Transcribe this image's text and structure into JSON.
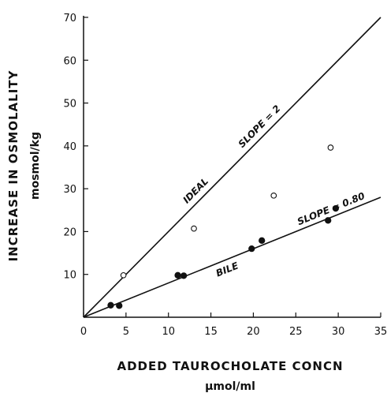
{
  "chart_data": {
    "type": "scatter",
    "xlabel": "ADDED TAUROCHOLATE CONCN",
    "xunit": "μmol/ml",
    "ylabel": "INCREASE IN OSMOLALITY",
    "yunit": "mosmol/kg",
    "xlim": [
      0,
      35
    ],
    "ylim": [
      0,
      70
    ],
    "xticks": [
      0,
      5,
      10,
      15,
      20,
      25,
      30,
      35
    ],
    "yticks": [
      10,
      20,
      30,
      40,
      50,
      60,
      70
    ],
    "grid": false,
    "series": [
      {
        "marker": "open-circle",
        "x": [
          4.7,
          13.0,
          22.4,
          29.1
        ],
        "y": [
          9.8,
          20.7,
          28.4,
          39.6
        ]
      },
      {
        "marker": "filled-circle",
        "x": [
          3.2,
          4.2,
          11.1,
          11.8,
          19.8,
          21.0,
          28.8,
          29.7
        ],
        "y": [
          2.8,
          2.7,
          9.8,
          9.7,
          16.0,
          17.9,
          22.6,
          25.4
        ]
      }
    ],
    "lines": [
      {
        "label": "IDEAL",
        "slope": 2,
        "intercept": 0
      },
      {
        "label": "BILE",
        "slope": 0.8,
        "intercept": 0
      }
    ],
    "annotations": [
      {
        "text": "IDEAL",
        "line": 0,
        "at_x": 14.0
      },
      {
        "text": "SLOPE = 2",
        "line": 0,
        "at_x": 21.5
      },
      {
        "text": "BILE",
        "line": 1,
        "at_x": 16.5
      },
      {
        "text": "SLOPE = 0.80",
        "line": 1,
        "at_x": 29.5
      }
    ]
  }
}
